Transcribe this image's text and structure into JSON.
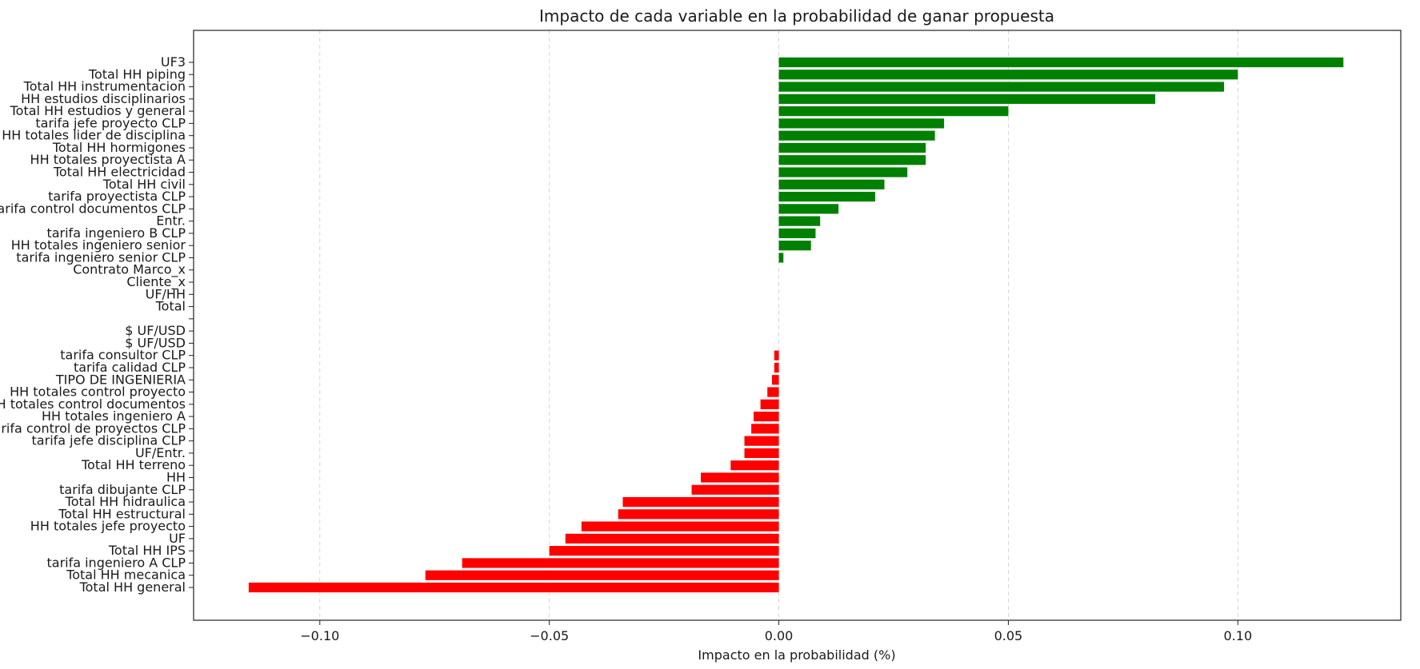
{
  "chart_data": {
    "type": "bar",
    "orientation": "horizontal",
    "title": "Impacto de cada variable en la probabilidad de ganar propuesta",
    "xlabel": "Impacto en la probabilidad (%)",
    "ylabel": "",
    "xlim": [
      -0.1275,
      0.1355
    ],
    "xticks": [
      -0.1,
      -0.05,
      0.0,
      0.05,
      0.1
    ],
    "xtick_labels": [
      "−0.10",
      "−0.05",
      "0.00",
      "0.05",
      "0.10"
    ],
    "grid": "x dashed",
    "colors": {
      "positive": "#008000",
      "negative": "#ff0000"
    },
    "categories": [
      "UF3",
      "Total HH piping",
      "Total HH instrumentacion",
      "HH estudios disciplinarios",
      "Total HH estudios y general",
      "tarifa jefe proyecto CLP",
      "HH totales lider de disciplina",
      "Total HH hormigones",
      "HH totales proyectista A",
      "Total HH electricidad",
      "Total HH civil",
      "tarifa proyectista CLP",
      "tarifa control documentos CLP",
      "Entr.",
      "tarifa ingeniero B CLP",
      "HH totales ingeniero senior",
      "tarifa ingeniero senior CLP",
      "Contrato Marco_x",
      "Cliente_x",
      "UF/HH",
      "Total",
      "",
      "$ UF/USD",
      "$ UF/USD",
      "tarifa consultor CLP",
      "tarifa calidad CLP",
      "TIPO DE INGENIERIA",
      "HH totales control proyecto",
      "HH totales control documentos",
      "HH totales ingeniero A",
      "tarifa control de proyectos CLP",
      "tarifa jefe disciplina CLP",
      "UF/Entr.",
      "Total HH terreno",
      "HH",
      "tarifa dibujante CLP",
      "Total HH hidraulica",
      "Total HH estructural",
      "HH totales jefe proyecto",
      "UF",
      "Total HH IPS",
      "tarifa ingeniero A CLP",
      "Total HH mecanica",
      "Total HH general"
    ],
    "values": [
      0.123,
      0.1,
      0.097,
      0.082,
      0.05,
      0.036,
      0.034,
      0.032,
      0.032,
      0.028,
      0.023,
      0.021,
      0.013,
      0.009,
      0.008,
      0.007,
      0.001,
      0.0,
      0.0,
      0.0,
      0.0,
      0.0,
      0.0,
      0.0,
      -0.001,
      -0.001,
      -0.0015,
      -0.0025,
      -0.004,
      -0.0055,
      -0.006,
      -0.0075,
      -0.0075,
      -0.0105,
      -0.017,
      -0.019,
      -0.034,
      -0.035,
      -0.043,
      -0.0465,
      -0.05,
      -0.069,
      -0.077,
      -0.1155
    ]
  }
}
